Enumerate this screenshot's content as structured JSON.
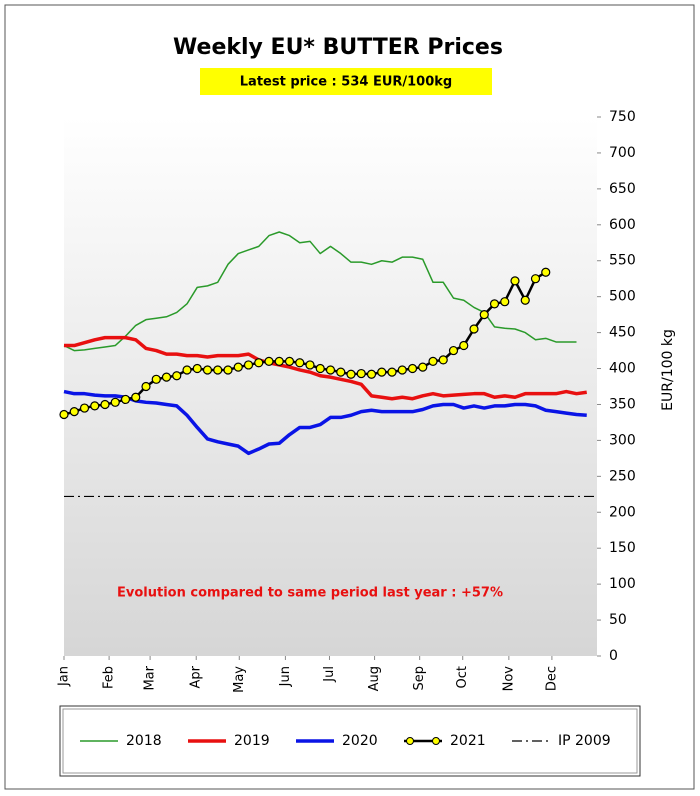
{
  "chart_data": {
    "type": "line",
    "title": "Weekly EU* BUTTER Prices",
    "subtitle": "Latest price : 534 EUR/100kg",
    "annotation": "Evolution compared to same period last year : +57%",
    "y_label": "EUR/100 kg",
    "xlim": [
      0,
      52
    ],
    "xticks": [
      {
        "value": 0,
        "label": "Jan"
      },
      {
        "value": 4.4,
        "label": "Feb"
      },
      {
        "value": 8.4,
        "label": "Mar"
      },
      {
        "value": 12.9,
        "label": "Apr"
      },
      {
        "value": 17.1,
        "label": "May"
      },
      {
        "value": 21.6,
        "label": "Jun"
      },
      {
        "value": 25.9,
        "label": "Jul"
      },
      {
        "value": 30.3,
        "label": "Aug"
      },
      {
        "value": 34.7,
        "label": "Sep"
      },
      {
        "value": 38.9,
        "label": "Oct"
      },
      {
        "value": 43.4,
        "label": "Nov"
      },
      {
        "value": 47.6,
        "label": "Dec"
      }
    ],
    "ylim": [
      0,
      750
    ],
    "yticks": [
      0,
      50,
      100,
      150,
      200,
      250,
      300,
      350,
      400,
      450,
      500,
      550,
      600,
      650,
      700,
      750
    ],
    "legend": "bottom",
    "x": [
      0,
      1,
      2,
      3,
      4,
      5,
      6,
      7,
      8,
      9,
      10,
      11,
      12,
      13,
      14,
      15,
      16,
      17,
      18,
      19,
      20,
      21,
      22,
      23,
      24,
      25,
      26,
      27,
      28,
      29,
      30,
      31,
      32,
      33,
      34,
      35,
      36,
      37,
      38,
      39,
      40,
      41,
      42,
      43,
      44,
      45,
      46,
      47,
      48,
      49,
      50,
      51
    ],
    "series": [
      {
        "name": "2018",
        "color": "#2a9a2a",
        "width": 1.5,
        "values": [
          432,
          425,
          426,
          428,
          430,
          432,
          445,
          460,
          468,
          470,
          472,
          478,
          490,
          513,
          515,
          520,
          545,
          560,
          565,
          570,
          585,
          590,
          585,
          575,
          577,
          560,
          570,
          560,
          548,
          548,
          545,
          550,
          548,
          555,
          555,
          552,
          520,
          520,
          498,
          495,
          485,
          478,
          458,
          456,
          455,
          450,
          440,
          442,
          437,
          437,
          437,
          null
        ]
      },
      {
        "name": "2019",
        "color": "#e81010",
        "width": 3.5,
        "values": [
          432,
          432,
          436,
          440,
          443,
          443,
          443,
          440,
          428,
          425,
          420,
          420,
          418,
          418,
          416,
          418,
          418,
          418,
          420,
          412,
          408,
          405,
          402,
          398,
          395,
          390,
          388,
          385,
          382,
          378,
          362,
          360,
          358,
          360,
          358,
          362,
          365,
          362,
          363,
          364,
          365,
          365,
          360,
          362,
          360,
          365,
          365,
          365,
          365,
          368,
          365,
          367
        ]
      },
      {
        "name": "2020",
        "color": "#0a14e6",
        "width": 3.5,
        "values": [
          368,
          365,
          365,
          363,
          362,
          362,
          360,
          355,
          353,
          352,
          350,
          348,
          335,
          318,
          302,
          298,
          295,
          292,
          282,
          288,
          295,
          296,
          308,
          318,
          318,
          322,
          332,
          332,
          335,
          340,
          342,
          340,
          340,
          340,
          340,
          343,
          348,
          350,
          350,
          345,
          348,
          345,
          348,
          348,
          350,
          350,
          348,
          342,
          340,
          338,
          336,
          335
        ]
      },
      {
        "name": "2021",
        "color": "#000000",
        "marker_color": "#ffff00",
        "width": 2.5,
        "markers": true,
        "values": [
          336,
          340,
          345,
          348,
          350,
          353,
          357,
          360,
          375,
          385,
          388,
          390,
          398,
          400,
          398,
          398,
          398,
          402,
          405,
          408,
          410,
          410,
          410,
          408,
          405,
          400,
          398,
          395,
          392,
          393,
          392,
          395,
          395,
          398,
          400,
          402,
          410,
          412,
          425,
          432,
          455,
          475,
          490,
          493,
          522,
          495,
          525,
          534,
          null,
          null,
          null,
          null
        ]
      }
    ],
    "reference_lines": [
      {
        "name": "IP 2009",
        "value": 222,
        "color": "#000000"
      }
    ]
  }
}
